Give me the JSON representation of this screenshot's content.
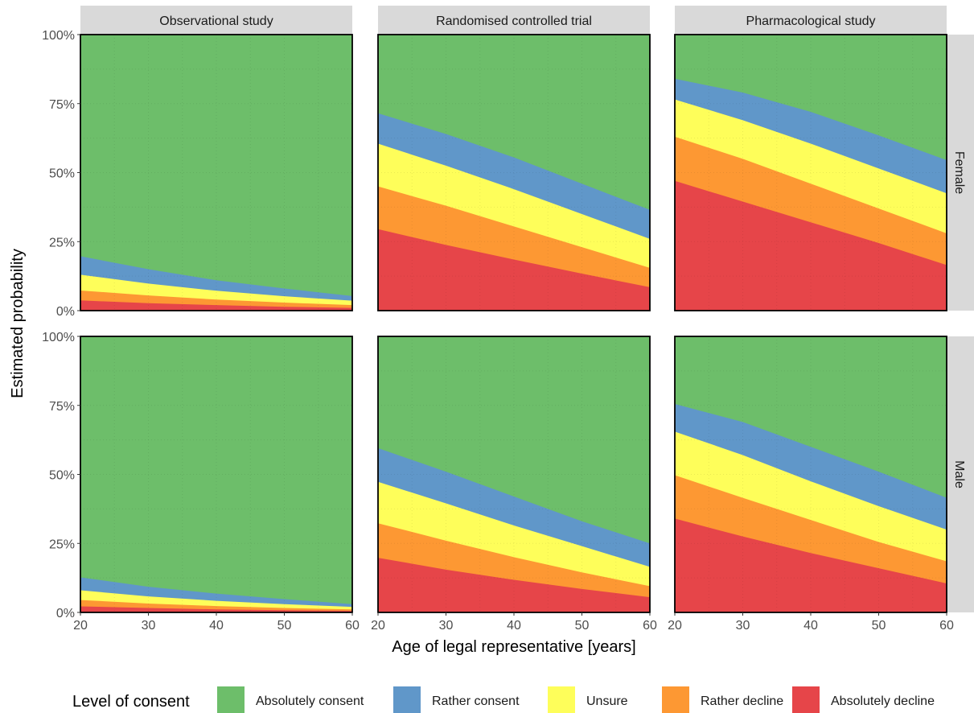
{
  "chart_data": {
    "type": "area",
    "subtype": "stacked-100",
    "xlabel": "Age of legal representative [years]",
    "ylabel": "Estimated probability",
    "xlim": [
      20,
      60
    ],
    "ylim": [
      0,
      1
    ],
    "x_ticks": [
      20,
      30,
      40,
      50,
      60
    ],
    "y_tick_values": [
      0,
      0.25,
      0.5,
      0.75,
      1
    ],
    "y_tick_labels": [
      "0%",
      "25%",
      "50%",
      "75%",
      "100%"
    ],
    "grid": true,
    "legend": {
      "title": "Level of consent",
      "placement": "bottom",
      "entries": [
        "Absolutely consent",
        "Rather consent",
        "Unsure",
        "Rather decline",
        "Absolutely decline"
      ]
    },
    "columns": [
      "Observational study",
      "Randomised controlled trial",
      "Pharmacological study"
    ],
    "rows": [
      "Female",
      "Male"
    ],
    "colors": {
      "Absolutely consent": "#6dbe6a",
      "Rather consent": "#6097c9",
      "Unsure": "#fefe5a",
      "Rather decline": "#fd9833",
      "Absolutely decline": "#e64549"
    },
    "x": [
      20,
      30,
      40,
      50,
      60
    ],
    "note_values": "each panel lists cumulative upper boundaries (bottom to top) for the four lower categories; Absolutely consent fills to 100%",
    "panels": [
      {
        "column": "Observational study",
        "row": "Female",
        "absolutely_decline": [
          0.037,
          0.027,
          0.02,
          0.014,
          0.01
        ],
        "rather_decline": [
          0.073,
          0.055,
          0.04,
          0.029,
          0.02
        ],
        "unsure": [
          0.13,
          0.098,
          0.072,
          0.052,
          0.036
        ],
        "rather_consent": [
          0.197,
          0.15,
          0.11,
          0.08,
          0.053
        ]
      },
      {
        "column": "Randomised controlled trial",
        "row": "Female",
        "absolutely_decline": [
          0.295,
          0.238,
          0.185,
          0.134,
          0.085
        ],
        "rather_decline": [
          0.45,
          0.38,
          0.305,
          0.23,
          0.155
        ],
        "unsure": [
          0.605,
          0.525,
          0.44,
          0.35,
          0.26
        ],
        "rather_consent": [
          0.715,
          0.64,
          0.555,
          0.46,
          0.365
        ]
      },
      {
        "column": "Pharmacological study",
        "row": "Female",
        "absolutely_decline": [
          0.47,
          0.395,
          0.32,
          0.245,
          0.165
        ],
        "rather_decline": [
          0.63,
          0.55,
          0.46,
          0.37,
          0.28
        ],
        "unsure": [
          0.765,
          0.69,
          0.605,
          0.515,
          0.425
        ],
        "rather_consent": [
          0.84,
          0.79,
          0.72,
          0.635,
          0.545
        ]
      },
      {
        "column": "Observational study",
        "row": "Male",
        "absolutely_decline": [
          0.022,
          0.016,
          0.011,
          0.008,
          0.006
        ],
        "rather_decline": [
          0.045,
          0.032,
          0.023,
          0.016,
          0.011
        ],
        "unsure": [
          0.08,
          0.058,
          0.042,
          0.03,
          0.02
        ],
        "rather_consent": [
          0.127,
          0.093,
          0.068,
          0.048,
          0.03
        ]
      },
      {
        "column": "Randomised controlled trial",
        "row": "Male",
        "absolutely_decline": [
          0.198,
          0.155,
          0.118,
          0.085,
          0.055
        ],
        "rather_decline": [
          0.323,
          0.26,
          0.2,
          0.145,
          0.095
        ],
        "unsure": [
          0.473,
          0.395,
          0.315,
          0.24,
          0.165
        ],
        "rather_consent": [
          0.595,
          0.51,
          0.42,
          0.33,
          0.25
        ]
      },
      {
        "column": "Pharmacological study",
        "row": "Male",
        "absolutely_decline": [
          0.34,
          0.275,
          0.215,
          0.16,
          0.105
        ],
        "rather_decline": [
          0.497,
          0.415,
          0.335,
          0.255,
          0.185
        ],
        "unsure": [
          0.655,
          0.57,
          0.475,
          0.385,
          0.3
        ],
        "rather_consent": [
          0.755,
          0.69,
          0.6,
          0.51,
          0.415
        ]
      }
    ]
  }
}
